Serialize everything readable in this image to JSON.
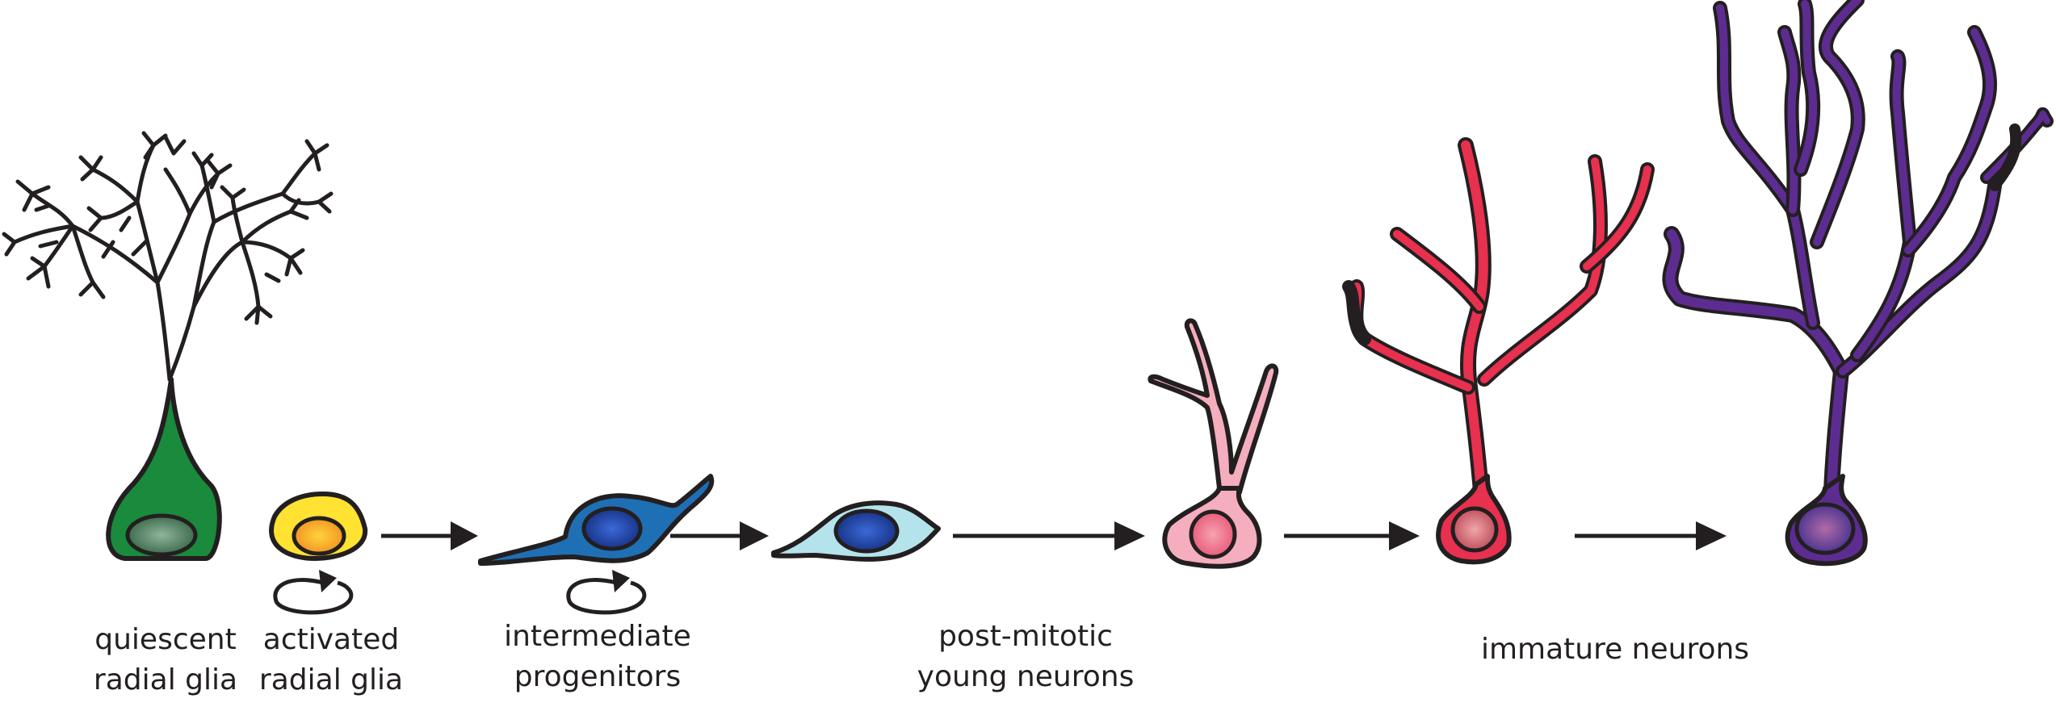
{
  "stages": [
    {
      "id": "quiescent-radial-glia",
      "label_lines": [
        "quiescent",
        "radial glia"
      ],
      "color": "#1a8a3c",
      "nucleus_color": "#4f7a5c"
    },
    {
      "id": "activated-radial-glia",
      "label_lines": [
        "activated",
        "radial glia"
      ],
      "color": "#ffe232",
      "nucleus_color": "#f7a928",
      "self_renewal": true
    },
    {
      "id": "intermediate-progenitors",
      "label_lines": [
        "intermediate",
        "progenitors"
      ],
      "color": "#1f6fb4",
      "nucleus_color": "#1c3f9a",
      "self_renewal": true
    },
    {
      "id": "post-mitotic-young-neurons",
      "label_lines": [
        "post-mitotic",
        "young neurons"
      ],
      "color": "#b5e3ec",
      "nucleus_color": "#1c3f9a"
    },
    {
      "id": "early-neuron",
      "label_lines": [],
      "color": "#f4aebd",
      "nucleus_color": "#f07a92"
    },
    {
      "id": "immature-neurons",
      "label_lines": [
        "immature neurons"
      ],
      "color": "#e8304f",
      "nucleus_color": "#d8707a"
    },
    {
      "id": "mature-neuron",
      "label_lines": [],
      "color": "#5d2c91",
      "nucleus_color": "#6b4a9e"
    }
  ],
  "colors": {
    "outline": "#231f20",
    "arrow": "#231f20",
    "text": "#231f20"
  }
}
